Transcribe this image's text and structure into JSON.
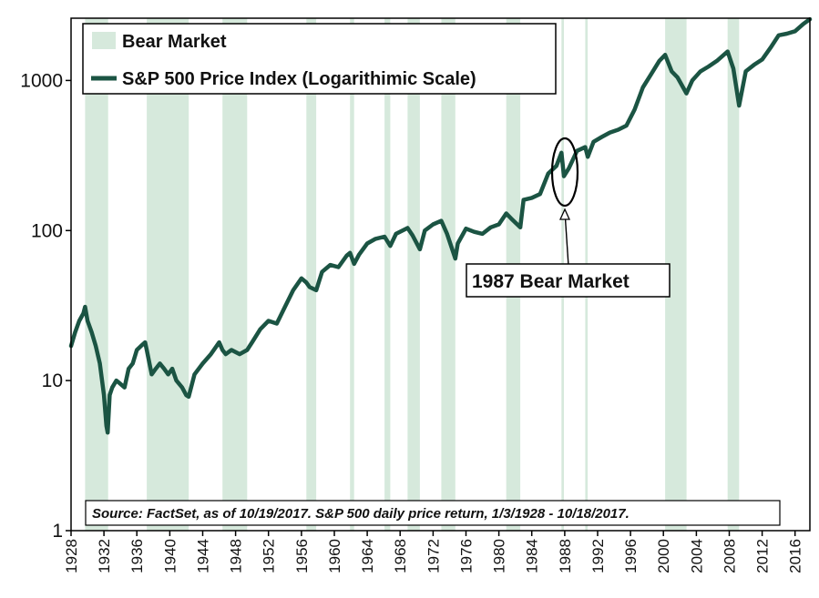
{
  "chart_data": {
    "type": "line",
    "scale": "log",
    "title": "",
    "xlabel": "",
    "ylabel": "",
    "xlim": [
      1928,
      2017.8
    ],
    "ylim": [
      1,
      2600
    ],
    "y_ticks": [
      {
        "value": 1,
        "label": "1"
      },
      {
        "value": 10,
        "label": "10"
      },
      {
        "value": 100,
        "label": "100"
      },
      {
        "value": 1000,
        "label": "1000"
      }
    ],
    "x_ticks": [
      "1928",
      "1932",
      "1936",
      "1940",
      "1944",
      "1948",
      "1952",
      "1956",
      "1960",
      "1964",
      "1968",
      "1972",
      "1976",
      "1980",
      "1984",
      "1988",
      "1992",
      "1996",
      "2000",
      "2004",
      "2008",
      "2012",
      "2016"
    ],
    "legend": [
      {
        "key": "bear",
        "label": "Bear Market"
      },
      {
        "key": "sp500",
        "label": "S&P 500 Price Index (Logarithimic Scale)"
      }
    ],
    "colors": {
      "line": "#1b5443",
      "bear": "#d6e9dc",
      "axis": "#000000"
    },
    "bear_markets": [
      [
        1929.7,
        1932.5
      ],
      [
        1937.2,
        1942.3
      ],
      [
        1946.4,
        1949.4
      ],
      [
        1956.6,
        1957.8
      ],
      [
        1961.9,
        1962.4
      ],
      [
        1966.1,
        1966.8
      ],
      [
        1968.9,
        1970.4
      ],
      [
        1973.0,
        1974.7
      ],
      [
        1980.9,
        1982.6
      ],
      [
        1987.6,
        1987.9
      ],
      [
        1990.5,
        1990.8
      ],
      [
        2000.2,
        2002.8
      ],
      [
        2007.8,
        2009.2
      ]
    ],
    "series": [
      {
        "name": "S&P 500 Price Index (Logarithimic Scale)",
        "x": [
          1928.0,
          1928.5,
          1929.0,
          1929.5,
          1929.7,
          1930.0,
          1930.5,
          1931.0,
          1931.5,
          1932.0,
          1932.3,
          1932.45,
          1932.7,
          1933.0,
          1933.5,
          1934.0,
          1934.5,
          1935.0,
          1935.5,
          1936.0,
          1936.5,
          1937.0,
          1937.2,
          1937.8,
          1938.3,
          1938.8,
          1939.3,
          1939.8,
          1940.3,
          1940.8,
          1941.5,
          1942.0,
          1942.3,
          1943.0,
          1944.0,
          1945.0,
          1946.0,
          1946.4,
          1946.8,
          1947.5,
          1948.5,
          1949.4,
          1950.0,
          1951.0,
          1952.0,
          1953.0,
          1954.0,
          1955.0,
          1956.0,
          1956.6,
          1957.0,
          1957.8,
          1958.5,
          1959.5,
          1960.5,
          1961.5,
          1961.9,
          1962.4,
          1963.0,
          1964.0,
          1965.0,
          1966.1,
          1966.8,
          1967.5,
          1968.9,
          1969.5,
          1970.4,
          1971.0,
          1972.0,
          1973.0,
          1973.7,
          1974.7,
          1975.0,
          1976.0,
          1977.0,
          1978.0,
          1979.0,
          1980.0,
          1980.9,
          1981.5,
          1982.6,
          1983.0,
          1984.0,
          1985.0,
          1986.0,
          1987.0,
          1987.6,
          1987.8,
          1987.9,
          1988.5,
          1989.5,
          1990.5,
          1990.8,
          1991.5,
          1992.5,
          1993.5,
          1994.5,
          1995.5,
          1996.5,
          1997.5,
          1998.5,
          1999.5,
          2000.2,
          2001.0,
          2001.7,
          2002.8,
          2003.5,
          2004.5,
          2005.5,
          2006.5,
          2007.8,
          2008.5,
          2009.2,
          2010.0,
          2011.0,
          2012.0,
          2013.0,
          2014.0,
          2015.0,
          2016.0,
          2017.0,
          2017.8
        ],
        "values": [
          17,
          21,
          25,
          28,
          31,
          25,
          21,
          17,
          13,
          8,
          5,
          4.5,
          8,
          9,
          10,
          9.5,
          9,
          12,
          13,
          16,
          17,
          18,
          16,
          11,
          12,
          13,
          12,
          11,
          12,
          10,
          9,
          8,
          7.8,
          11,
          13,
          15,
          18,
          16,
          15,
          16,
          15,
          16,
          18,
          22,
          25,
          24,
          31,
          40,
          48,
          45,
          42,
          40,
          53,
          59,
          57,
          68,
          71,
          60,
          69,
          82,
          88,
          91,
          79,
          95,
          104,
          93,
          75,
          100,
          110,
          116,
          95,
          65,
          82,
          103,
          98,
          95,
          105,
          110,
          130,
          120,
          105,
          160,
          165,
          175,
          240,
          270,
          330,
          260,
          230,
          260,
          340,
          360,
          310,
          390,
          420,
          450,
          470,
          500,
          640,
          900,
          1100,
          1350,
          1480,
          1150,
          1050,
          820,
          1000,
          1150,
          1240,
          1350,
          1560,
          1200,
          680,
          1150,
          1270,
          1380,
          1650,
          2000,
          2050,
          2130,
          2380,
          2560
        ]
      }
    ],
    "callout": "1987 Bear Market",
    "source": "Source: FactSet, as of 10/19/2017. S&P 500 daily price return, 1/3/1928 - 10/18/2017."
  }
}
